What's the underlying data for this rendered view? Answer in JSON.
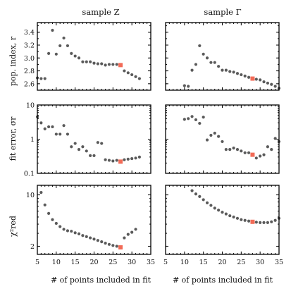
{
  "chart_data": {
    "type": "scatter",
    "columns": [
      {
        "title": "sample Z"
      },
      {
        "title": "sample Γ"
      }
    ],
    "xlabel": "# of points included in fit",
    "xlim": [
      5,
      35
    ],
    "xticks": [
      5,
      10,
      15,
      20,
      25,
      30,
      35
    ],
    "point_color": "#5a5a5a",
    "highlight_color": "#f26b57",
    "rows": [
      {
        "ylabel": "pop. index, r",
        "yscale": "linear",
        "ylim": [
          2.5,
          3.55
        ],
        "yticks": [
          2.6,
          2.8,
          3.0,
          3.2,
          3.4
        ],
        "yticklabels": [
          "2.6",
          "2.8",
          "3.0",
          "3.2",
          "3.4"
        ]
      },
      {
        "ylabel": "fit error, σr",
        "yscale": "log",
        "ylim": [
          0.1,
          10
        ],
        "yticks": [
          0.1,
          1,
          10
        ],
        "yticklabels": [
          "0.1",
          "1",
          "10"
        ]
      },
      {
        "ylabel": "χ²red",
        "yscale": "log",
        "ylim": [
          1.55,
          13.5
        ],
        "yticks": [
          2,
          10
        ],
        "yticklabels": [
          "2",
          "10"
        ]
      }
    ],
    "panels": [
      {
        "row": 0,
        "col": 0,
        "x": [
          5,
          6,
          7,
          8,
          9,
          10,
          11,
          12,
          13,
          14,
          15,
          16,
          17,
          18,
          19,
          20,
          21,
          22,
          23,
          24,
          25,
          26,
          27,
          28,
          29,
          30,
          31,
          32
        ],
        "y": [
          2.69,
          2.68,
          2.68,
          3.07,
          3.43,
          3.06,
          3.19,
          3.31,
          3.19,
          3.07,
          3.03,
          3.0,
          2.94,
          2.94,
          2.94,
          2.92,
          2.91,
          2.91,
          2.89,
          2.9,
          2.9,
          2.9,
          2.89,
          2.8,
          2.77,
          2.74,
          2.71,
          2.68
        ],
        "highlight": {
          "x": 27,
          "y": 2.89
        }
      },
      {
        "row": 0,
        "col": 1,
        "x": [
          10,
          11,
          12,
          13,
          14,
          15,
          16,
          17,
          18,
          19,
          20,
          21,
          22,
          23,
          24,
          25,
          26,
          27,
          28,
          29,
          30,
          31,
          32,
          33,
          34,
          35
        ],
        "y": [
          2.57,
          2.56,
          2.81,
          2.9,
          3.19,
          3.06,
          3.0,
          2.93,
          2.93,
          2.87,
          2.81,
          2.81,
          2.79,
          2.78,
          2.76,
          2.74,
          2.72,
          2.7,
          2.68,
          2.67,
          2.66,
          2.63,
          2.61,
          2.59,
          2.56,
          2.53
        ],
        "highlight": {
          "x": 28,
          "y": 2.68
        }
      },
      {
        "row": 1,
        "col": 0,
        "x": [
          5,
          6,
          7,
          8,
          9,
          10,
          11,
          12,
          13,
          14,
          15,
          16,
          17,
          18,
          19,
          20,
          21,
          22,
          23,
          24,
          25,
          26,
          27,
          28,
          29,
          30,
          31,
          32
        ],
        "y": [
          4.5,
          3.0,
          2.0,
          2.3,
          2.3,
          1.4,
          1.4,
          2.5,
          1.4,
          0.6,
          0.75,
          0.5,
          0.6,
          0.45,
          0.33,
          0.33,
          0.8,
          0.75,
          0.25,
          0.24,
          0.23,
          0.24,
          0.22,
          0.25,
          0.26,
          0.27,
          0.28,
          0.3
        ],
        "highlight": {
          "x": 27,
          "y": 0.22
        }
      },
      {
        "row": 1,
        "col": 1,
        "x": [
          10,
          11,
          12,
          13,
          14,
          15,
          16,
          17,
          18,
          19,
          20,
          21,
          22,
          23,
          24,
          25,
          26,
          27,
          28,
          29,
          30,
          31,
          32,
          33,
          34,
          35
        ],
        "y": [
          3.8,
          4.0,
          4.6,
          3.7,
          2.9,
          4.4,
          0.95,
          1.3,
          1.5,
          1.2,
          0.85,
          0.5,
          0.5,
          0.55,
          0.5,
          0.45,
          0.4,
          0.4,
          0.35,
          0.28,
          0.32,
          0.35,
          0.6,
          0.5,
          1.05,
          0.85
        ],
        "highlight": {
          "x": 28,
          "y": 0.35
        }
      },
      {
        "row": 2,
        "col": 0,
        "x": [
          6,
          7,
          8,
          9,
          10,
          11,
          12,
          13,
          14,
          15,
          16,
          17,
          18,
          19,
          20,
          21,
          22,
          23,
          24,
          25,
          26,
          27,
          28,
          29,
          30,
          31
        ],
        "y": [
          10.8,
          7.3,
          5.6,
          4.6,
          4.1,
          3.7,
          3.4,
          3.25,
          3.2,
          3.05,
          2.95,
          2.8,
          2.7,
          2.6,
          2.5,
          2.4,
          2.3,
          2.2,
          2.12,
          2.05,
          2.0,
          1.93,
          2.6,
          2.9,
          3.1,
          3.4
        ],
        "highlight": {
          "x": 27,
          "y": 1.93
        }
      },
      {
        "row": 2,
        "col": 1,
        "x": [
          12,
          13,
          14,
          15,
          16,
          17,
          18,
          19,
          20,
          21,
          22,
          23,
          24,
          25,
          26,
          27,
          28,
          29,
          30,
          31,
          32,
          33,
          34,
          35
        ],
        "y": [
          11.4,
          10.3,
          9.5,
          8.6,
          7.8,
          7.2,
          6.6,
          6.2,
          5.8,
          5.5,
          5.2,
          5.0,
          4.8,
          4.6,
          4.5,
          4.4,
          4.3,
          4.25,
          4.2,
          4.2,
          4.2,
          4.3,
          4.5,
          4.8
        ],
        "highlight": {
          "x": 28,
          "y": 4.3
        }
      }
    ]
  }
}
